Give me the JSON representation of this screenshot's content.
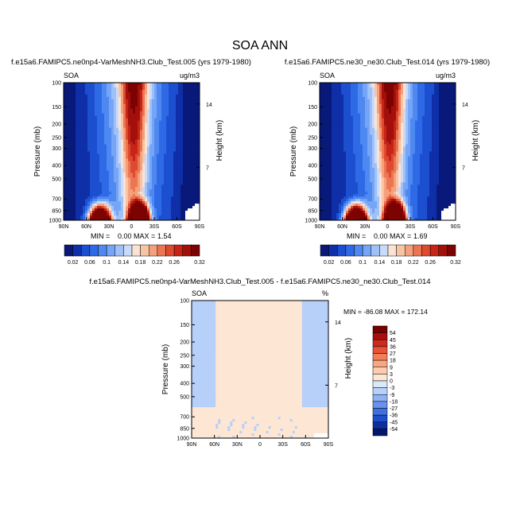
{
  "figure": {
    "title": "SOA ANN"
  },
  "chart_data": [
    {
      "type": "heatmap",
      "title": "f.e15a6.FAMIPC5.ne0np4-VarMeshNH3.Club_Test.005 (yrs 1979-1980)",
      "left_label": "SOA",
      "right_label": "ug/m3",
      "ylabel": "Pressure (mb)",
      "ylabel_right": "Height (km)",
      "x_ticks": [
        "90N",
        "60N",
        "30N",
        "0",
        "30S",
        "60S",
        "90S"
      ],
      "y_ticks": [
        "100",
        "150",
        "200",
        "250",
        "300",
        "400",
        "500",
        "700",
        "850",
        "1000"
      ],
      "y_ticks_right": [
        "14",
        "7"
      ],
      "stats": {
        "min_label": "MIN =",
        "min": "0.00",
        "max_label": "MAX =",
        "max": "1.54"
      },
      "colorbar_levels": [
        "0.02",
        "0.06",
        "0.1",
        "0.14",
        "0.18",
        "0.22",
        "0.26",
        "0.32"
      ],
      "peak_max": 1.54
    },
    {
      "type": "heatmap",
      "title": "f.e15a6.FAMIPC5.ne30_ne30.Club_Test.014 (yrs 1979-1980)",
      "left_label": "SOA",
      "right_label": "ug/m3",
      "ylabel": "Pressure (mb)",
      "ylabel_right": "Height (km)",
      "x_ticks": [
        "90N",
        "60N",
        "30N",
        "0",
        "30S",
        "60S",
        "90S"
      ],
      "y_ticks": [
        "100",
        "150",
        "200",
        "250",
        "300",
        "400",
        "500",
        "700",
        "850",
        "1000"
      ],
      "y_ticks_right": [
        "14",
        "7"
      ],
      "stats": {
        "min_label": "MIN =",
        "min": "0.00",
        "max_label": "MAX =",
        "max": "1.69"
      },
      "colorbar_levels": [
        "0.02",
        "0.06",
        "0.1",
        "0.14",
        "0.18",
        "0.22",
        "0.26",
        "0.32"
      ],
      "peak_max": 1.69
    },
    {
      "type": "heatmap",
      "title": "f.e15a6.FAMIPC5.ne0np4-VarMeshNH3.Club_Test.005 - f.e15a6.FAMIPC5.ne30_ne30.Club_Test.014",
      "left_label": "SOA",
      "right_label": "%",
      "ylabel": "Pressure (mb)",
      "ylabel_right": "Height (km)",
      "x_ticks": [
        "90N",
        "60N",
        "30N",
        "0",
        "30S",
        "60S",
        "90S"
      ],
      "y_ticks": [
        "100",
        "150",
        "200",
        "250",
        "300",
        "400",
        "500",
        "700",
        "850",
        "1000"
      ],
      "y_ticks_right": [
        "14",
        "7"
      ],
      "stats_text": "MIN = -86.08  MAX = 172.14",
      "colorbar_levels": [
        "54",
        "45",
        "36",
        "27",
        "18",
        "9",
        "3",
        "0",
        "-3",
        "-9",
        "-18",
        "-27",
        "-36",
        "-45",
        "-54"
      ]
    }
  ],
  "colors": {
    "abs_scale": [
      "#08197a",
      "#0f2fa8",
      "#1c4fd0",
      "#2f6ae6",
      "#4e88f1",
      "#76a5f6",
      "#a0c0f8",
      "#c9dbfb",
      "#fbe2d3",
      "#f8c4a6",
      "#f4a07c",
      "#ec7653",
      "#dd4a30",
      "#c52417",
      "#a3100c",
      "#7d0202"
    ],
    "diff_scale": [
      "#7a0000",
      "#a80e0e",
      "#cf2a1e",
      "#e85236",
      "#f47d58",
      "#f8a783",
      "#fbccb0",
      "#fde6d4",
      "#d8e9fc",
      "#b7d0fa",
      "#8fb2f6",
      "#6792ef",
      "#3f70e2",
      "#1e4ec9",
      "#0d2e9e",
      "#06176b"
    ]
  }
}
